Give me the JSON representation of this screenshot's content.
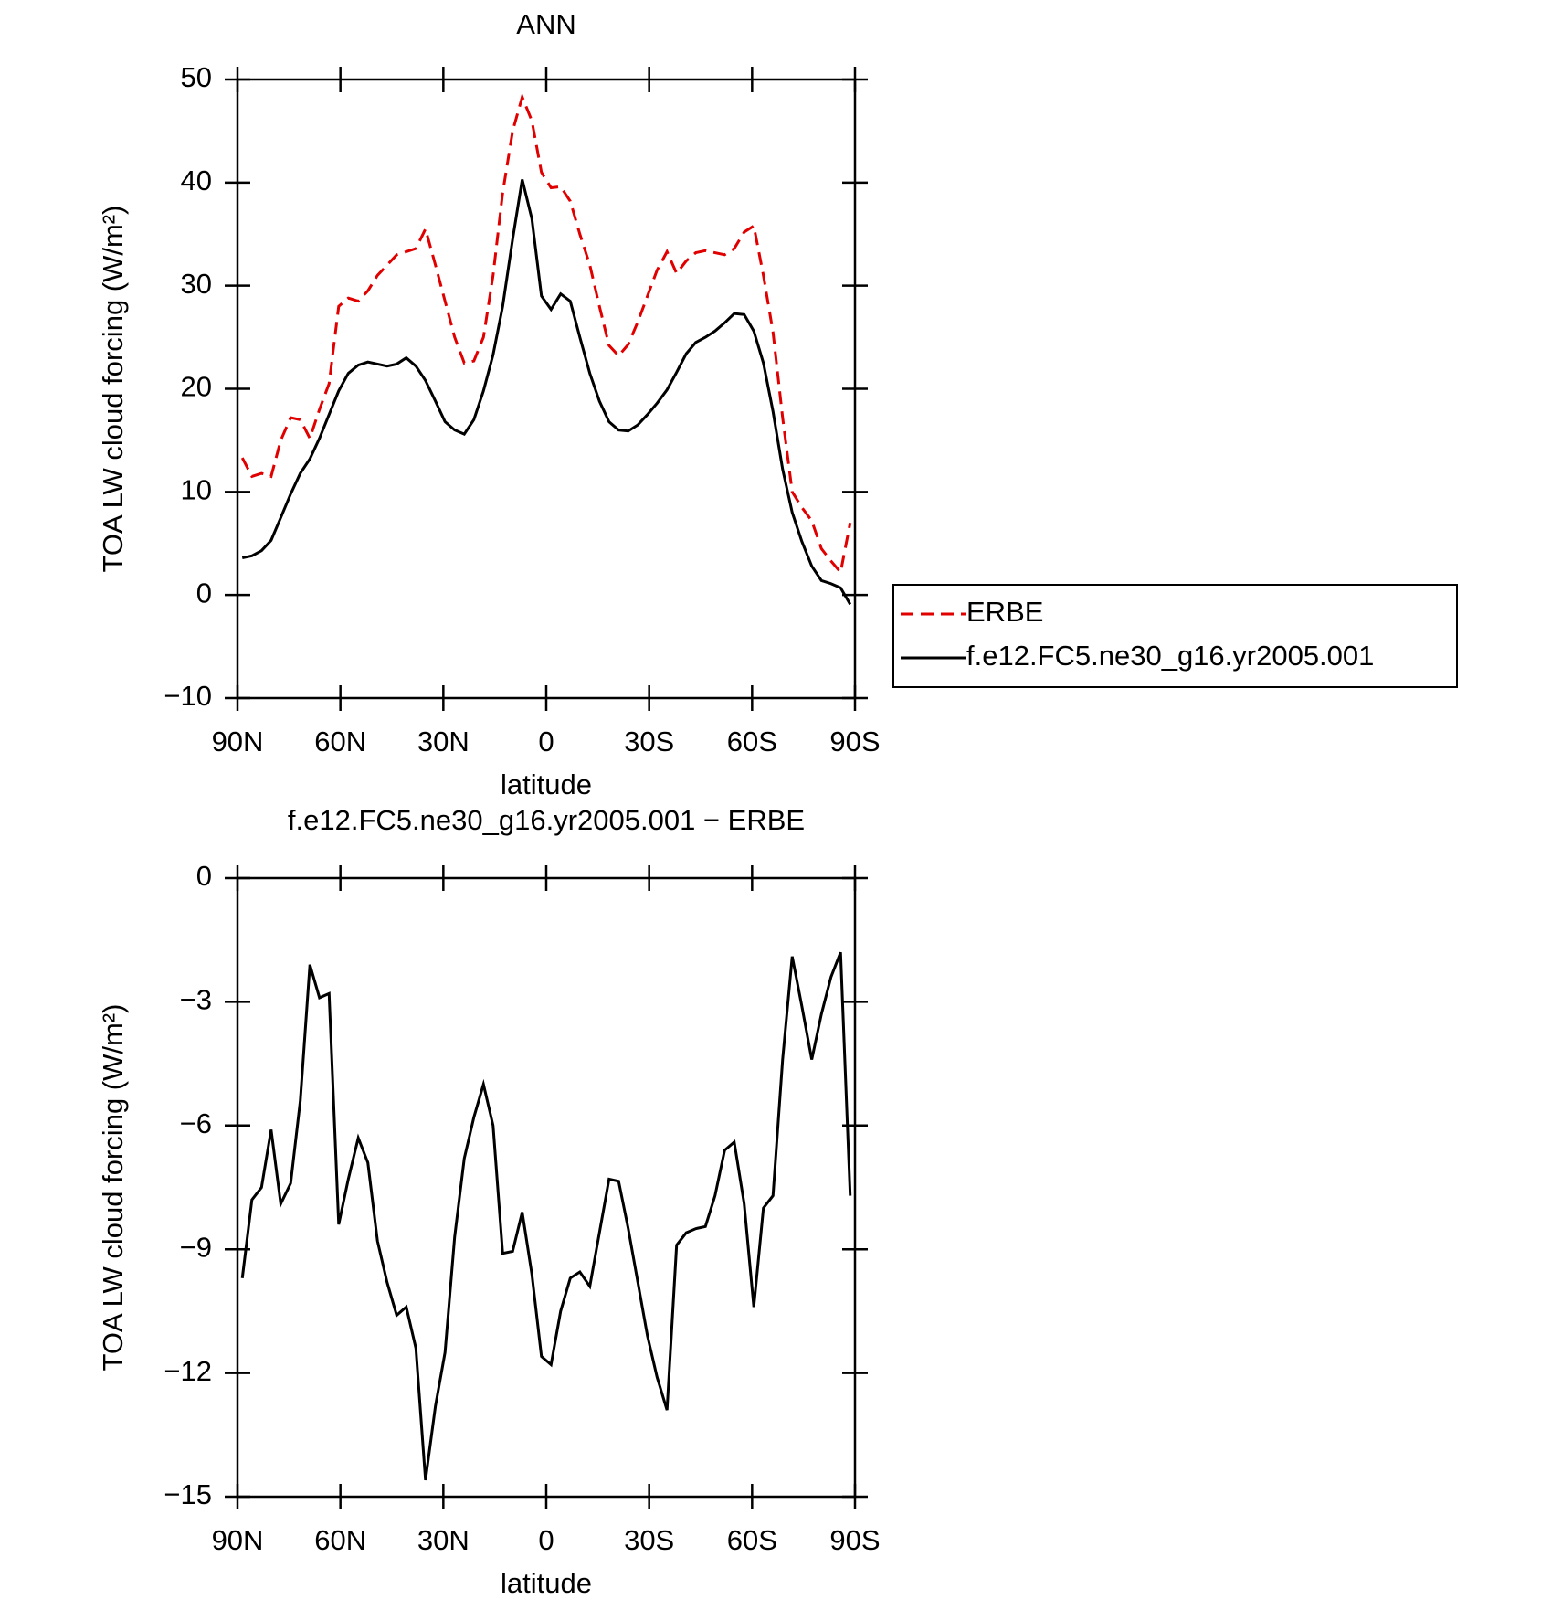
{
  "chart_data": [
    {
      "type": "line",
      "title": "ANN",
      "x_label": "latitude",
      "y_label": "TOA LW cloud forcing (W/m²)",
      "x": [
        88.6,
        85.8,
        83.0,
        80.2,
        77.4,
        74.5,
        71.7,
        68.9,
        66.1,
        63.3,
        60.5,
        57.7,
        54.8,
        52.0,
        49.2,
        46.4,
        43.6,
        40.8,
        38.0,
        35.2,
        32.3,
        29.5,
        26.7,
        23.9,
        21.1,
        18.3,
        15.5,
        12.7,
        9.8,
        7.0,
        4.2,
        1.4,
        -1.4,
        -4.2,
        -7.0,
        -9.8,
        -12.7,
        -15.5,
        -18.3,
        -21.1,
        -23.9,
        -26.7,
        -29.5,
        -32.3,
        -35.2,
        -38.0,
        -40.8,
        -43.6,
        -46.4,
        -49.2,
        -52.0,
        -54.8,
        -57.7,
        -60.5,
        -63.3,
        -66.1,
        -68.9,
        -71.7,
        -74.5,
        -77.4,
        -80.2,
        -83.0,
        -85.8,
        -88.6
      ],
      "series": [
        {
          "name": "ERBE",
          "color": "#e00000",
          "line_style": "dashed",
          "values": [
            13.3,
            11.5,
            11.8,
            11.5,
            15,
            17.2,
            17,
            15.2,
            18,
            20.5,
            28,
            28.8,
            28.5,
            29.5,
            31,
            32,
            33,
            33.3,
            33.6,
            35.5,
            32,
            28.5,
            25,
            22.5,
            22.7,
            25,
            31,
            39,
            45,
            48.3,
            46,
            41,
            39.5,
            39.6,
            38.2,
            35,
            32,
            28,
            24.2,
            23.2,
            24.3,
            26.5,
            29,
            31.5,
            33.3,
            31.2,
            32.4,
            33.2,
            33.4,
            33.2,
            33,
            33.6,
            35.2,
            35.8,
            31,
            25.5,
            17.2,
            10,
            8.5,
            7.2,
            4.5,
            3.3,
            2.2,
            7
          ]
        },
        {
          "name": "f.e12.FC5.ne30_g16.yr2005.001",
          "color": "#000000",
          "line_style": "solid",
          "values": [
            3.6,
            3.8,
            4.3,
            5.3,
            7.5,
            9.8,
            11.8,
            13.2,
            15.2,
            17.5,
            19.8,
            21.5,
            22.3,
            22.6,
            22.4,
            22.2,
            22.4,
            23,
            22.2,
            20.8,
            18.8,
            16.8,
            16,
            15.6,
            17,
            19.8,
            23.3,
            28,
            34.5,
            40.3,
            36.5,
            29,
            27.7,
            29.2,
            28.5,
            25,
            21.5,
            18.8,
            16.8,
            16,
            15.9,
            16.5,
            17.5,
            18.6,
            19.9,
            21.6,
            23.4,
            24.5,
            25,
            25.6,
            26.4,
            27.3,
            27.2,
            25.6,
            22.5,
            17.8,
            12.2,
            8,
            5.2,
            2.8,
            1.4,
            1.1,
            0.7,
            -0.9
          ]
        }
      ],
      "xlim": [
        90,
        -90
      ],
      "xticks": [
        {
          "value": 90,
          "label": "90N"
        },
        {
          "value": 60,
          "label": "60N"
        },
        {
          "value": 30,
          "label": "30N"
        },
        0,
        {
          "value": -30,
          "label": "30S"
        },
        {
          "value": -60,
          "label": "60S"
        },
        {
          "value": -90,
          "label": "90S"
        }
      ],
      "ylim": [
        -10,
        50
      ],
      "yticks": [
        {
          "value": -10,
          "label": "−10"
        },
        0,
        10,
        20,
        30,
        40,
        50
      ],
      "legend": true
    },
    {
      "type": "line",
      "title": "f.e12.FC5.ne30_g16.yr2005.001 − ERBE",
      "x_label": "latitude",
      "y_label": "TOA LW cloud forcing (W/m²)",
      "x": [
        88.6,
        85.8,
        83.0,
        80.2,
        77.4,
        74.5,
        71.7,
        68.9,
        66.1,
        63.3,
        60.5,
        57.7,
        54.8,
        52.0,
        49.2,
        46.4,
        43.6,
        40.8,
        38.0,
        35.2,
        32.3,
        29.5,
        26.7,
        23.9,
        21.1,
        18.3,
        15.5,
        12.7,
        9.8,
        7.0,
        4.2,
        1.4,
        -1.4,
        -4.2,
        -7.0,
        -9.8,
        -12.7,
        -15.5,
        -18.3,
        -21.1,
        -23.9,
        -26.7,
        -29.5,
        -32.3,
        -35.2,
        -38.0,
        -40.8,
        -43.6,
        -46.4,
        -49.2,
        -52.0,
        -54.8,
        -57.7,
        -60.5,
        -63.3,
        -66.1,
        -68.9,
        -71.7,
        -74.5,
        -77.4,
        -80.2,
        -83.0,
        -85.8,
        -88.6
      ],
      "series": [
        {
          "color": "#000000",
          "line_style": "solid",
          "values": [
            -9.7,
            -7.8,
            -7.5,
            -6.1,
            -7.9,
            -7.4,
            -5.4,
            -2.1,
            -2.9,
            -2.8,
            -8.4,
            -7.3,
            -6.3,
            -6.9,
            -8.8,
            -9.8,
            -10.6,
            -10.4,
            -11.4,
            -14.6,
            -12.8,
            -11.5,
            -8.7,
            -6.8,
            -5.8,
            -5,
            -6,
            -9.1,
            -9.05,
            -8.1,
            -9.6,
            -11.6,
            -11.8,
            -10.5,
            -9.7,
            -9.55,
            -9.9,
            -8.6,
            -7.3,
            -7.35,
            -8.5,
            -9.8,
            -11.1,
            -12.1,
            -12.9,
            -8.9,
            -8.6,
            -8.5,
            -8.45,
            -7.7,
            -6.6,
            -6.4,
            -7.9,
            -10.4,
            -8,
            -7.7,
            -4.4,
            -1.9,
            -3.1,
            -4.4,
            -3.3,
            -2.4,
            -1.8,
            -7.7
          ]
        }
      ],
      "xlim": [
        90,
        -90
      ],
      "xticks": [
        {
          "value": 90,
          "label": "90N"
        },
        {
          "value": 60,
          "label": "60N"
        },
        {
          "value": 30,
          "label": "30N"
        },
        0,
        {
          "value": -30,
          "label": "30S"
        },
        {
          "value": -60,
          "label": "60S"
        },
        {
          "value": -90,
          "label": "90S"
        }
      ],
      "ylim": [
        -15,
        0
      ],
      "yticks": [
        {
          "value": -15,
          "label": "−15"
        },
        {
          "value": -12,
          "label": "−12"
        },
        {
          "value": -9,
          "label": "−9"
        },
        {
          "value": -6,
          "label": "−6"
        },
        {
          "value": -3,
          "label": "−3"
        },
        0
      ],
      "legend": false
    }
  ]
}
